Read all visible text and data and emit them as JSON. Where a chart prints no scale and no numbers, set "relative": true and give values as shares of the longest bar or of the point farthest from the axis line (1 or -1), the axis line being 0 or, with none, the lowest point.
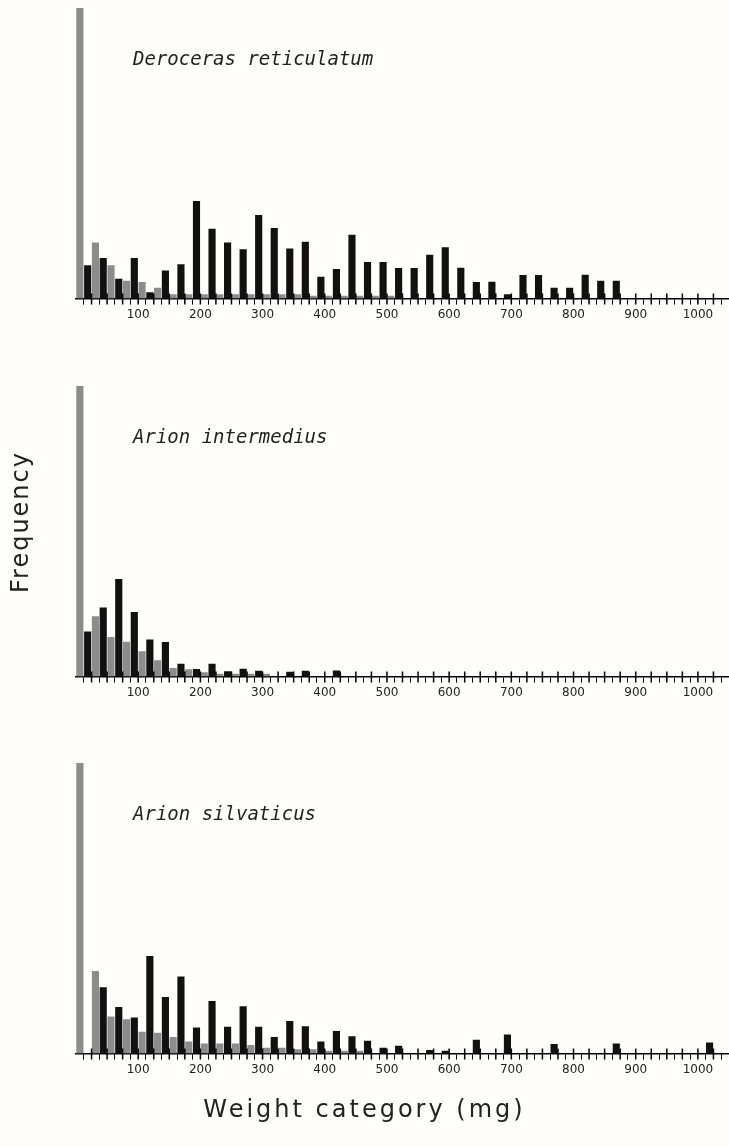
{
  "chart_data": [
    {
      "type": "bar",
      "title": "Deroceras reticulatum",
      "relative": true,
      "grid": false,
      "x": [
        12.5,
        37.5,
        62.5,
        87.5,
        112.5,
        137.5,
        162.5,
        187.5,
        212.5,
        237.5,
        262.5,
        287.5,
        312.5,
        337.5,
        362.5,
        387.5,
        412.5,
        437.5,
        462.5,
        487.5,
        512.5,
        537.5,
        562.5,
        587.5,
        612.5,
        637.5,
        662.5,
        687.5,
        712.5,
        737.5,
        762.5,
        787.5,
        812.5,
        837.5,
        862.5,
        887.5,
        912.5,
        937.5,
        962.5,
        987.5,
        1012.5,
        1037.5
      ],
      "xlim": [
        0,
        1050
      ],
      "xticks": [
        {
          "value": 25,
          "label": null
        },
        {
          "value": 50,
          "label": null
        },
        {
          "value": 75,
          "label": null
        },
        100,
        {
          "value": 125,
          "label": null
        },
        {
          "value": 150,
          "label": null
        },
        {
          "value": 175,
          "label": null
        },
        200,
        {
          "value": 225,
          "label": null
        },
        {
          "value": 250,
          "label": null
        },
        {
          "value": 275,
          "label": null
        },
        300,
        {
          "value": 325,
          "label": null
        },
        {
          "value": 350,
          "label": null
        },
        {
          "value": 375,
          "label": null
        },
        400,
        {
          "value": 425,
          "label": null
        },
        {
          "value": 450,
          "label": null
        },
        {
          "value": 475,
          "label": null
        },
        500,
        {
          "value": 525,
          "label": null
        },
        {
          "value": 550,
          "label": null
        },
        {
          "value": 575,
          "label": null
        },
        600,
        {
          "value": 625,
          "label": null
        },
        {
          "value": 650,
          "label": null
        },
        {
          "value": 675,
          "label": null
        },
        700,
        {
          "value": 725,
          "label": null
        },
        {
          "value": 750,
          "label": null
        },
        {
          "value": 775,
          "label": null
        },
        800,
        {
          "value": 825,
          "label": null
        },
        {
          "value": 850,
          "label": null
        },
        {
          "value": 875,
          "label": null
        },
        900,
        {
          "value": 925,
          "label": null
        },
        {
          "value": 950,
          "label": null
        },
        {
          "value": 975,
          "label": null
        },
        1000,
        {
          "value": 1025,
          "label": null
        }
      ],
      "series": [
        {
          "color": "#8c8c8c",
          "values": [
            1,
            0.193,
            0.115,
            0.061,
            0.057,
            0.037,
            0.015,
            0.015,
            0.015,
            0.015,
            0.015,
            0.015,
            0.015,
            0.015,
            0.015,
            0.01,
            0.01,
            0.01,
            0.01,
            0.01,
            0.01,
            0,
            0,
            0,
            0,
            0,
            0,
            0,
            0,
            0,
            0,
            0,
            0,
            0,
            0,
            0,
            0,
            0,
            0,
            0,
            0,
            0
          ]
        },
        {
          "color": "#111111",
          "values": [
            0.115,
            0.14,
            0.068,
            0.14,
            0.022,
            0.097,
            0.118,
            0.336,
            0.24,
            0.193,
            0.17,
            0.288,
            0.243,
            0.172,
            0.196,
            0.075,
            0.102,
            0.22,
            0.126,
            0.126,
            0.105,
            0.105,
            0.151,
            0.177,
            0.106,
            0.057,
            0.058,
            0.015,
            0.081,
            0.081,
            0.037,
            0.037,
            0.082,
            0.061,
            0.061,
            0,
            0,
            0,
            0,
            0,
            0,
            0
          ]
        }
      ]
    },
    {
      "type": "bar",
      "title": "Arion intermedius",
      "ylabel": "Frequency",
      "relative": true,
      "grid": false,
      "x": [
        12.5,
        37.5,
        62.5,
        87.5,
        112.5,
        137.5,
        162.5,
        187.5,
        212.5,
        237.5,
        262.5,
        287.5,
        312.5,
        337.5,
        362.5,
        387.5,
        412.5,
        437.5,
        462.5,
        487.5,
        512.5,
        537.5,
        562.5,
        587.5,
        612.5,
        637.5,
        662.5,
        687.5,
        712.5,
        737.5,
        762.5,
        787.5,
        812.5,
        837.5,
        862.5,
        887.5,
        912.5,
        937.5,
        962.5,
        987.5,
        1012.5,
        1037.5
      ],
      "xlim": [
        0,
        1050
      ],
      "xticks": [
        {
          "value": 25,
          "label": null
        },
        {
          "value": 50,
          "label": null
        },
        {
          "value": 75,
          "label": null
        },
        100,
        {
          "value": 125,
          "label": null
        },
        {
          "value": 150,
          "label": null
        },
        {
          "value": 175,
          "label": null
        },
        200,
        {
          "value": 225,
          "label": null
        },
        {
          "value": 250,
          "label": null
        },
        {
          "value": 275,
          "label": null
        },
        300,
        {
          "value": 325,
          "label": null
        },
        {
          "value": 350,
          "label": null
        },
        {
          "value": 375,
          "label": null
        },
        400,
        {
          "value": 425,
          "label": null
        },
        {
          "value": 450,
          "label": null
        },
        {
          "value": 475,
          "label": null
        },
        500,
        {
          "value": 525,
          "label": null
        },
        {
          "value": 550,
          "label": null
        },
        {
          "value": 575,
          "label": null
        },
        600,
        {
          "value": 625,
          "label": null
        },
        {
          "value": 650,
          "label": null
        },
        {
          "value": 675,
          "label": null
        },
        700,
        {
          "value": 725,
          "label": null
        },
        {
          "value": 750,
          "label": null
        },
        {
          "value": 775,
          "label": null
        },
        800,
        {
          "value": 825,
          "label": null
        },
        {
          "value": 850,
          "label": null
        },
        {
          "value": 875,
          "label": null
        },
        900,
        {
          "value": 925,
          "label": null
        },
        {
          "value": 950,
          "label": null
        },
        {
          "value": 975,
          "label": null
        },
        1000,
        {
          "value": 1025,
          "label": null
        }
      ],
      "series": [
        {
          "color": "#8c8c8c",
          "values": [
            1,
            0.208,
            0.136,
            0.12,
            0.087,
            0.056,
            0.03,
            0.025,
            0.015,
            0.01,
            0.01,
            0.01,
            0.01,
            0,
            0,
            0,
            0,
            0,
            0,
            0,
            0,
            0,
            0,
            0,
            0,
            0,
            0,
            0,
            0,
            0,
            0,
            0,
            0,
            0,
            0,
            0,
            0,
            0,
            0,
            0,
            0,
            0
          ]
        },
        {
          "color": "#111111",
          "values": [
            0.155,
            0.238,
            0.336,
            0.222,
            0.128,
            0.119,
            0.044,
            0.026,
            0.044,
            0.018,
            0.027,
            0.02,
            0,
            0.017,
            0.02,
            0,
            0.021,
            0,
            0,
            0,
            0,
            0,
            0,
            0,
            0,
            0,
            0,
            0,
            0,
            0,
            0,
            0,
            0,
            0,
            0,
            0,
            0,
            0,
            0,
            0,
            0,
            0
          ]
        }
      ]
    },
    {
      "type": "bar",
      "title": "Arion silvaticus",
      "xlabel": "Weight category (mg)",
      "relative": true,
      "grid": false,
      "x": [
        12.5,
        37.5,
        62.5,
        87.5,
        112.5,
        137.5,
        162.5,
        187.5,
        212.5,
        237.5,
        262.5,
        287.5,
        312.5,
        337.5,
        362.5,
        387.5,
        412.5,
        437.5,
        462.5,
        487.5,
        512.5,
        537.5,
        562.5,
        587.5,
        612.5,
        637.5,
        662.5,
        687.5,
        712.5,
        737.5,
        762.5,
        787.5,
        812.5,
        837.5,
        862.5,
        887.5,
        912.5,
        937.5,
        962.5,
        987.5,
        1012.5,
        1037.5
      ],
      "xlim": [
        0,
        1050
      ],
      "xticks": [
        {
          "value": 25,
          "label": null
        },
        {
          "value": 50,
          "label": null
        },
        {
          "value": 75,
          "label": null
        },
        100,
        {
          "value": 125,
          "label": null
        },
        {
          "value": 150,
          "label": null
        },
        {
          "value": 175,
          "label": null
        },
        200,
        {
          "value": 225,
          "label": null
        },
        {
          "value": 250,
          "label": null
        },
        {
          "value": 275,
          "label": null
        },
        300,
        {
          "value": 325,
          "label": null
        },
        {
          "value": 350,
          "label": null
        },
        {
          "value": 375,
          "label": null
        },
        400,
        {
          "value": 425,
          "label": null
        },
        {
          "value": 450,
          "label": null
        },
        {
          "value": 475,
          "label": null
        },
        500,
        {
          "value": 525,
          "label": null
        },
        {
          "value": 550,
          "label": null
        },
        {
          "value": 575,
          "label": null
        },
        600,
        {
          "value": 625,
          "label": null
        },
        {
          "value": 650,
          "label": null
        },
        {
          "value": 675,
          "label": null
        },
        700,
        {
          "value": 725,
          "label": null
        },
        {
          "value": 750,
          "label": null
        },
        {
          "value": 775,
          "label": null
        },
        800,
        {
          "value": 825,
          "label": null
        },
        {
          "value": 850,
          "label": null
        },
        {
          "value": 875,
          "label": null
        },
        900,
        {
          "value": 925,
          "label": null
        },
        {
          "value": 950,
          "label": null
        },
        {
          "value": 975,
          "label": null
        },
        1000,
        {
          "value": 1025,
          "label": null
        }
      ],
      "series": [
        {
          "color": "#8c8c8c",
          "values": [
            1,
            0.284,
            0.128,
            0.118,
            0.075,
            0.072,
            0.057,
            0.042,
            0.035,
            0.035,
            0.035,
            0.03,
            0.02,
            0.02,
            0.015,
            0.015,
            0.01,
            0.01,
            0.01,
            0,
            0,
            0,
            0,
            0,
            0,
            0,
            0,
            0,
            0,
            0,
            0,
            0,
            0,
            0,
            0,
            0,
            0,
            0,
            0,
            0,
            0,
            0
          ]
        },
        {
          "color": "#111111",
          "values": [
            0,
            0.228,
            0.16,
            0.124,
            0.336,
            0.195,
            0.265,
            0.09,
            0.181,
            0.092,
            0.163,
            0.092,
            0.057,
            0.112,
            0.094,
            0.042,
            0.078,
            0.06,
            0.044,
            0.02,
            0.027,
            0,
            0.012,
            0.01,
            0,
            0.048,
            0,
            0.066,
            0,
            0,
            0.033,
            0,
            0,
            0,
            0.035,
            0,
            0,
            0,
            0,
            0,
            0.038,
            0
          ]
        }
      ]
    }
  ]
}
